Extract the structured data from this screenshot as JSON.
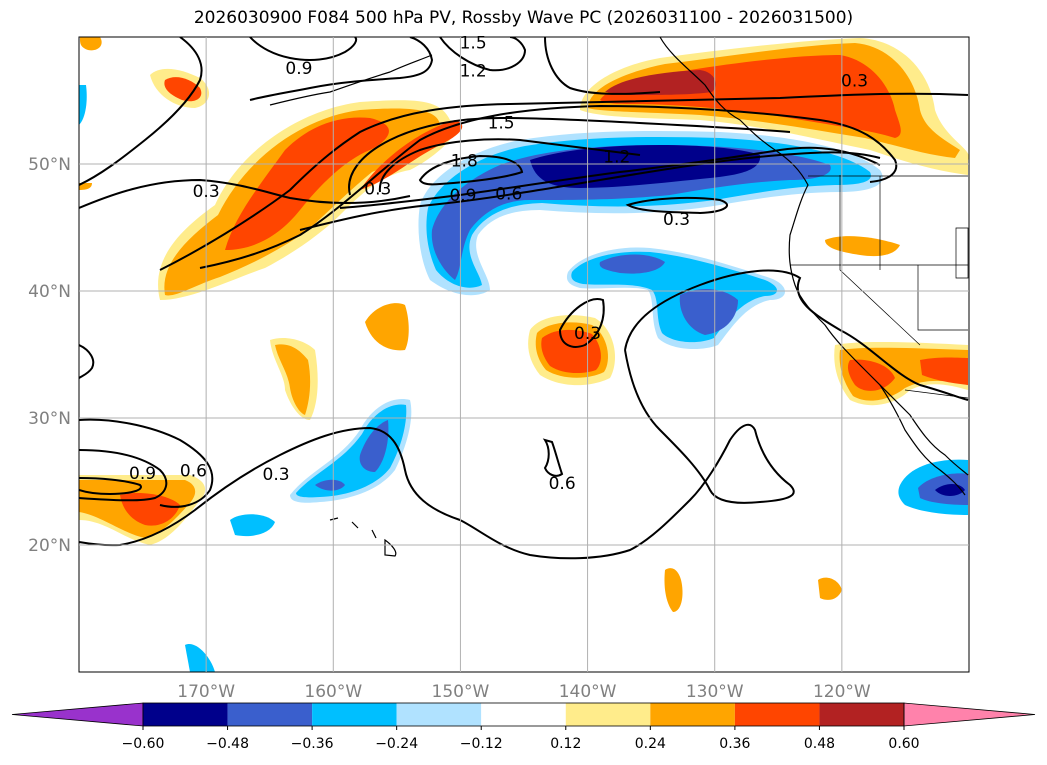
{
  "title": "2026030900 F084 500 hPa PV, Rossby Wave PC (2026031100 - 2026031500)",
  "map": {
    "projection": "PlateCarree",
    "lon_range": [
      -180,
      -110
    ],
    "lat_range": [
      10,
      60
    ],
    "lat_ticks": [
      {
        "value": 20,
        "label": "20°N"
      },
      {
        "value": 30,
        "label": "30°N"
      },
      {
        "value": 40,
        "label": "40°N"
      },
      {
        "value": 50,
        "label": "50°N"
      }
    ],
    "lon_ticks": [
      {
        "value": -170,
        "label": "170°W"
      },
      {
        "value": -160,
        "label": "160°W"
      },
      {
        "value": -150,
        "label": "150°W"
      },
      {
        "value": -140,
        "label": "140°W"
      },
      {
        "value": -130,
        "label": "130°W"
      },
      {
        "value": -120,
        "label": "120°W"
      }
    ],
    "gridlines": true,
    "contour_labels": [
      {
        "text": "1.5",
        "lon": -149,
        "lat": 59.5
      },
      {
        "text": "1.2",
        "lon": -149,
        "lat": 57.3
      },
      {
        "text": "0.9",
        "lon": -162.7,
        "lat": 57.5
      },
      {
        "text": "1.5",
        "lon": -146.8,
        "lat": 53.2
      },
      {
        "text": "1.8",
        "lon": -149.7,
        "lat": 50.2
      },
      {
        "text": "1.2",
        "lon": -137.7,
        "lat": 50.5
      },
      {
        "text": "0.3",
        "lon": -156.5,
        "lat": 48
      },
      {
        "text": "0.3",
        "lon": -170,
        "lat": 47.8
      },
      {
        "text": "0.9",
        "lon": -149.8,
        "lat": 47.5
      },
      {
        "text": "0.6",
        "lon": -146.2,
        "lat": 47.6
      },
      {
        "text": "0.3",
        "lon": -133,
        "lat": 45.6
      },
      {
        "text": "0.3",
        "lon": -140,
        "lat": 36.6
      },
      {
        "text": "0.3",
        "lon": -164.5,
        "lat": 25.5
      },
      {
        "text": "0.6",
        "lon": -142,
        "lat": 24.8
      },
      {
        "text": "0.9",
        "lon": -175,
        "lat": 25.6
      },
      {
        "text": "0.6",
        "lon": -171,
        "lat": 25.8
      },
      {
        "text": "0.3",
        "lon": -119,
        "lat": 56.5
      }
    ]
  },
  "colorbar": {
    "levels": [
      "−0.60",
      "−0.48",
      "−0.36",
      "−0.24",
      "−0.12",
      "0.12",
      "0.24",
      "0.36",
      "0.48",
      "0.60"
    ],
    "colors": [
      "#9932CC",
      "#00008B",
      "#3A5FCD",
      "#00BFFF",
      "#B0E2FF",
      "#FFFFFF",
      "#FFEC8B",
      "#FFA500",
      "#FF4500",
      "#B22222",
      "#FF82AB"
    ],
    "extend": "both"
  }
}
